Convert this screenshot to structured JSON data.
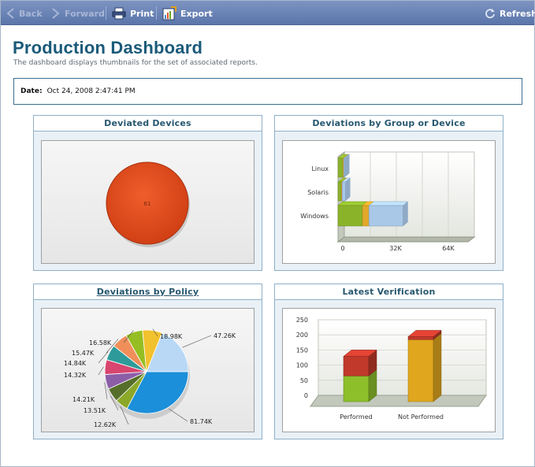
{
  "toolbar": {
    "back": "Back",
    "forward": "Forward",
    "print": "Print",
    "export": "Export",
    "refresh": "Refresh"
  },
  "header": {
    "title": "Production Dashboard",
    "subtitle": "The dashboard displays thumbnails for the set of associated reports.",
    "date_label": "Date:",
    "date_value": "Oct 24, 2008 2:47:41 PM"
  },
  "panels": {
    "deviated_devices": "Deviated Devices",
    "by_group": "Deviations by Group or Device",
    "by_policy": "Deviations by Policy",
    "latest_verification": "Latest Verification"
  },
  "chart_data": [
    {
      "type": "pie",
      "title": "Deviated Devices",
      "slices": [
        {
          "label": "61",
          "value": 61,
          "color": "#e04b1c"
        }
      ]
    },
    {
      "type": "bar",
      "orientation": "horizontal",
      "stacked": true,
      "title": "Deviations by Group or Device",
      "categories": [
        "Linux",
        "Solaris",
        "Windows"
      ],
      "series": [
        {
          "values": [
            3000,
            2000,
            15000
          ],
          "color": "#8ab32a"
        },
        {
          "values": [
            500,
            500,
            4000
          ],
          "color": "#e0a829"
        },
        {
          "values": [
            500,
            2000,
            21000
          ],
          "color": "#a9c8e8"
        }
      ],
      "xticks": [
        "0",
        "32K",
        "64K"
      ],
      "xlim": [
        0,
        80000
      ]
    },
    {
      "type": "pie",
      "title": "Deviations by Policy",
      "labels": [
        "47.26K",
        "81.74K",
        "12.62K",
        "13.51K",
        "14.21K",
        "14.32K",
        "14.84K",
        "15.47K",
        "16.58K",
        "18.98K"
      ],
      "values": [
        47.26,
        81.74,
        12.62,
        13.51,
        14.21,
        14.32,
        14.84,
        15.47,
        16.58,
        18.98
      ],
      "colors": [
        "#b8d8f6",
        "#1b8fd9",
        "#8ca829",
        "#556e2a",
        "#8c5ea8",
        "#d8456e",
        "#2e9b9a",
        "#f08f5a",
        "#96be22",
        "#f2c12e"
      ]
    },
    {
      "type": "bar",
      "stacked": true,
      "title": "Latest Verification",
      "categories": [
        "Performed",
        "Not Performed"
      ],
      "series": [
        {
          "values": [
            85,
            205
          ],
          "color": "#8cbf2a"
        },
        {
          "values": [
            65,
            10
          ],
          "color": "#c0392b"
        }
      ],
      "yticks": [
        "250",
        "200",
        "150",
        "100",
        "50",
        "0"
      ],
      "ylim": [
        0,
        250
      ]
    }
  ]
}
